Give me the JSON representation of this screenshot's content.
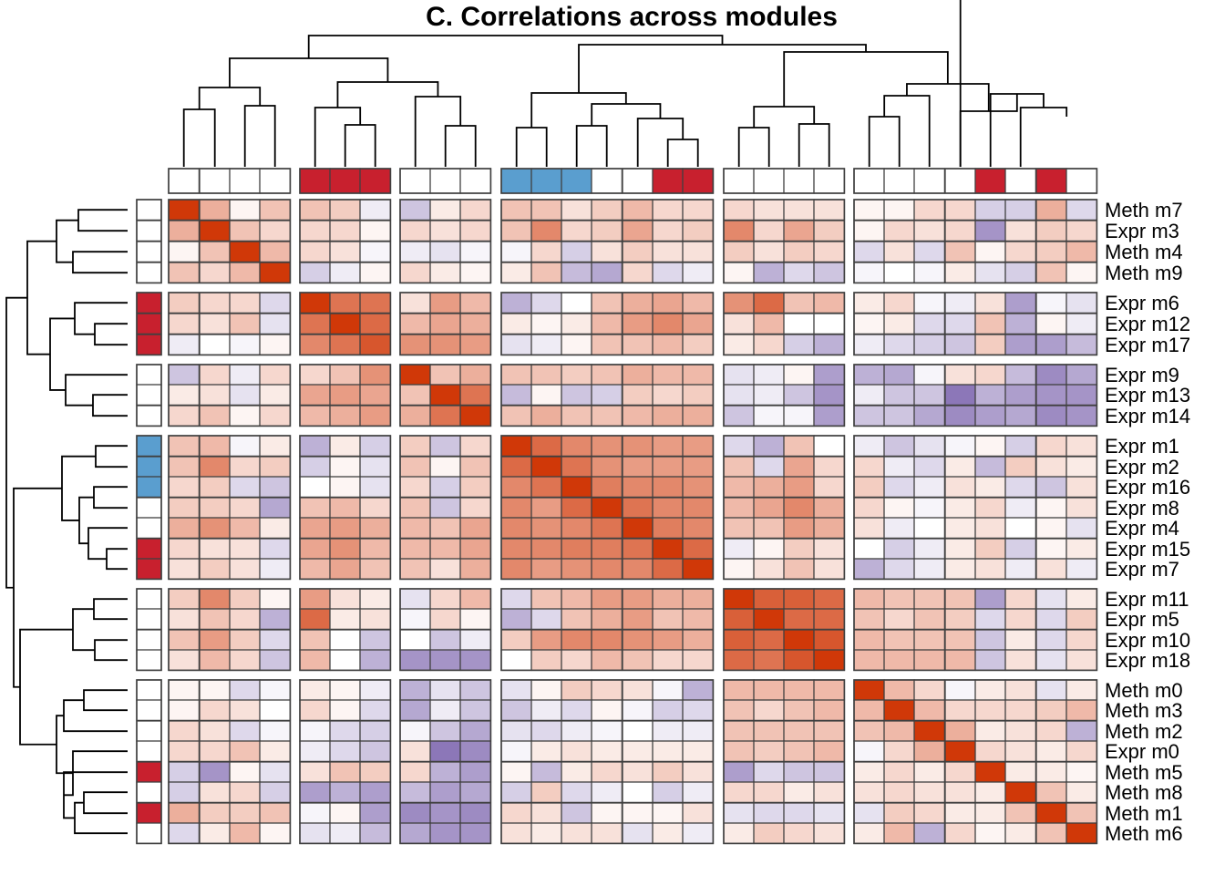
{
  "chart_data": {
    "type": "heatmap",
    "title": "C. Correlations across modules",
    "labels": [
      "Meth m7",
      "Expr m3",
      "Meth m4",
      "Meth m9",
      "Expr m6",
      "Expr m12",
      "Expr m17",
      "Expr m9",
      "Expr m13",
      "Expr m14",
      "Expr m1",
      "Expr m2",
      "Expr m16",
      "Expr m8",
      "Expr m4",
      "Expr m15",
      "Expr m7",
      "Expr m11",
      "Expr m5",
      "Expr m10",
      "Expr m18",
      "Meth m0",
      "Meth m3",
      "Meth m2",
      "Expr m0",
      "Meth m5",
      "Meth m8",
      "Meth m1",
      "Meth m6"
    ],
    "row_groups": [
      4,
      3,
      3,
      7,
      4,
      8
    ],
    "col_groups": [
      4,
      3,
      3,
      7,
      4,
      8
    ],
    "value_range": [
      -1,
      1
    ],
    "colors": {
      "positive": "#d03808",
      "negative": "#5b3d99",
      "zero": "#ffffff",
      "annot_red": "#c8202e",
      "annot_blue": "#5a9ecf",
      "annot_white": "#ffffff",
      "border": "#404040"
    },
    "annotation": [
      "w",
      "w",
      "w",
      "w",
      "r",
      "r",
      "r",
      "w",
      "w",
      "w",
      "b",
      "b",
      "b",
      "w",
      "w",
      "r",
      "r",
      "w",
      "w",
      "w",
      "w",
      "w",
      "w",
      "w",
      "w",
      "r",
      "w",
      "r",
      "w"
    ],
    "values": [
      [
        1,
        0.4,
        0.05,
        0.3,
        0.3,
        0.25,
        -0.1,
        -0.3,
        0.1,
        0.2,
        0.3,
        0.3,
        0.15,
        0.25,
        0.35,
        0.2,
        0.2,
        0.2,
        0.15,
        0.15,
        0.15,
        0.05,
        0.05,
        0.2,
        0.2,
        -0.25,
        -0.25,
        0.4,
        -0.2
      ],
      [
        0.4,
        1,
        0.3,
        0.2,
        0.2,
        0.2,
        0.05,
        0.2,
        0.15,
        0.2,
        0.3,
        0.6,
        0.2,
        0.25,
        0.45,
        0.2,
        0.25,
        0.6,
        0.2,
        0.45,
        0.25,
        0.05,
        0.2,
        0.15,
        0.2,
        -0.55,
        0.15,
        0.25,
        0.2
      ],
      [
        0.05,
        0.3,
        1,
        0.35,
        0.2,
        0.15,
        -0.05,
        -0.1,
        -0.15,
        -0.05,
        -0.05,
        0.2,
        -0.25,
        0.15,
        0.25,
        0.15,
        0.15,
        0.25,
        0.15,
        0.25,
        0.2,
        -0.2,
        0.15,
        -0.2,
        0.3,
        0.05,
        0.2,
        0.25,
        0.35
      ],
      [
        0.3,
        0.2,
        0.35,
        1,
        -0.25,
        -0.1,
        0.05,
        0.2,
        0.1,
        0.05,
        0.1,
        0.3,
        -0.35,
        -0.45,
        0.2,
        -0.2,
        -0.1,
        0.05,
        -0.4,
        -0.2,
        -0.3,
        -0.05,
        0,
        -0.05,
        0.1,
        -0.15,
        -0.25,
        0.3,
        0.05
      ],
      [
        0.25,
        0.2,
        0.2,
        -0.2,
        1,
        0.7,
        0.7,
        0.15,
        0.5,
        0.35,
        -0.4,
        -0.2,
        0,
        0.3,
        0.4,
        0.45,
        0.35,
        0.55,
        0.75,
        0.3,
        0.35,
        0.1,
        0.2,
        -0.05,
        -0.1,
        0.15,
        -0.5,
        -0.05,
        -0.15
      ],
      [
        0.2,
        0.15,
        0.3,
        -0.15,
        0.7,
        1,
        0.75,
        0.35,
        0.45,
        0.4,
        0.1,
        0.05,
        0.1,
        0.35,
        0.5,
        0.6,
        0.45,
        0.15,
        0.35,
        0,
        0,
        0.05,
        0.1,
        -0.2,
        -0.2,
        0.3,
        -0.4,
        0.05,
        -0.1
      ],
      [
        -0.1,
        0,
        -0.05,
        0.05,
        0.6,
        0.7,
        0.85,
        0.55,
        0.55,
        0.5,
        -0.15,
        -0.1,
        0.05,
        0.3,
        0.3,
        0.35,
        0.25,
        0.1,
        0.2,
        -0.25,
        -0.4,
        -0.1,
        -0.2,
        -0.25,
        -0.3,
        0.25,
        -0.5,
        -0.5,
        -0.35
      ],
      [
        -0.3,
        0.2,
        -0.1,
        0.2,
        0.2,
        0.3,
        0.55,
        1,
        0.3,
        0.4,
        0.3,
        0.3,
        0.25,
        0.3,
        0.4,
        0.35,
        0.35,
        -0.15,
        -0.1,
        0.05,
        -0.5,
        -0.4,
        -0.45,
        -0.05,
        0.15,
        0.2,
        -0.35,
        -0.6,
        -0.45
      ],
      [
        0.1,
        0.15,
        -0.15,
        0.1,
        0.45,
        0.5,
        0.45,
        0.3,
        1,
        0.7,
        -0.35,
        0.05,
        -0.3,
        -0.25,
        0.25,
        0.2,
        0.25,
        -0.15,
        -0.1,
        -0.3,
        -0.55,
        -0.1,
        -0.3,
        -0.3,
        -0.7,
        -0.4,
        -0.5,
        -0.55,
        -0.55
      ],
      [
        0.2,
        0.3,
        0.05,
        0.2,
        0.35,
        0.4,
        0.5,
        0.4,
        0.7,
        1,
        0.3,
        0.4,
        0.3,
        0.3,
        0.35,
        0.4,
        0.4,
        -0.3,
        -0.05,
        -0.05,
        -0.5,
        -0.3,
        -0.3,
        -0.45,
        -0.6,
        -0.5,
        -0.45,
        -0.6,
        -0.55
      ],
      [
        0.3,
        0.35,
        -0.05,
        0.1,
        -0.4,
        0.1,
        -0.25,
        0.25,
        -0.3,
        0.2,
        1,
        0.75,
        0.6,
        0.55,
        0.55,
        0.5,
        0.5,
        -0.2,
        -0.4,
        0.3,
        0,
        -0.1,
        -0.3,
        -0.15,
        -0.05,
        0.05,
        -0.25,
        0.2,
        0.15
      ],
      [
        0.3,
        0.6,
        0.2,
        0.25,
        -0.25,
        0.05,
        -0.15,
        0.3,
        0.05,
        0.3,
        0.75,
        1,
        0.7,
        0.55,
        0.5,
        0.5,
        0.5,
        0.3,
        -0.2,
        0.45,
        0.2,
        0.2,
        -0.1,
        -0.2,
        0.1,
        -0.35,
        0.25,
        0.15,
        0.1
      ],
      [
        0.2,
        0.25,
        -0.2,
        -0.3,
        0,
        0.05,
        -0.15,
        0.2,
        -0.25,
        0.25,
        0.6,
        0.7,
        1,
        0.65,
        0.6,
        0.6,
        0.55,
        0.35,
        0.4,
        0.5,
        0.2,
        0.25,
        -0.2,
        -0.1,
        0.15,
        0.1,
        -0.2,
        -0.3,
        0.15
      ],
      [
        0.25,
        0.25,
        0.2,
        -0.45,
        0.3,
        0.35,
        0.2,
        0.3,
        -0.3,
        0.2,
        0.6,
        0.5,
        0.75,
        1,
        0.7,
        0.6,
        0.6,
        0.35,
        0.45,
        0.6,
        0.4,
        0.2,
        0.05,
        -0.05,
        0.1,
        0.2,
        -0.1,
        0.05,
        0.15
      ],
      [
        0.4,
        0.55,
        0.35,
        0.1,
        0.45,
        0.5,
        0.4,
        0.35,
        0.3,
        0.45,
        0.6,
        0.55,
        0.6,
        0.7,
        1,
        0.65,
        0.6,
        0.3,
        0.3,
        0.5,
        0.4,
        0.15,
        -0.1,
        0,
        0.1,
        0.15,
        0,
        0.05,
        -0.15
      ],
      [
        0.2,
        0.15,
        0.15,
        -0.2,
        0.45,
        0.55,
        0.35,
        0.35,
        0.35,
        0.45,
        0.6,
        0.6,
        0.65,
        0.65,
        0.7,
        1,
        0.75,
        -0.1,
        0.05,
        0.25,
        0.15,
        0,
        -0.25,
        -0.1,
        0.1,
        0.25,
        -0.25,
        0.05,
        0.1
      ],
      [
        0.15,
        0.25,
        0.15,
        -0.1,
        0.35,
        0.45,
        0.3,
        0.3,
        0.15,
        0.4,
        0.6,
        0.5,
        0.55,
        0.6,
        0.6,
        0.75,
        1,
        0.05,
        0.15,
        0.3,
        0.15,
        -0.4,
        -0.2,
        -0.1,
        0.1,
        0.15,
        -0.1,
        0.15,
        -0.1
      ],
      [
        0.25,
        0.6,
        0.25,
        0.05,
        0.5,
        0.15,
        0.1,
        -0.15,
        0.2,
        0.35,
        -0.2,
        0.3,
        0.35,
        0.5,
        0.5,
        0.4,
        0.4,
        1,
        0.8,
        0.8,
        0.75,
        0.35,
        0.3,
        0.3,
        0.3,
        -0.5,
        0.2,
        -0.15,
        0.1
      ],
      [
        0.15,
        0.3,
        0.2,
        -0.4,
        0.75,
        0.1,
        0.15,
        -0.05,
        0.2,
        0.05,
        -0.4,
        -0.2,
        0.3,
        0.4,
        0.5,
        0.3,
        0.35,
        0.8,
        1,
        0.75,
        0.75,
        0.3,
        0.2,
        0.3,
        0.25,
        -0.2,
        0.2,
        -0.2,
        0.25
      ],
      [
        0.3,
        0.5,
        0.25,
        -0.2,
        0.3,
        0,
        -0.3,
        0,
        -0.3,
        -0.1,
        0.25,
        0.5,
        0.6,
        0.6,
        0.55,
        0.5,
        0.4,
        0.8,
        0.75,
        1,
        0.85,
        0.35,
        0.3,
        0.3,
        0.3,
        -0.3,
        0.1,
        -0.2,
        0.2
      ],
      [
        0.15,
        0.35,
        0.2,
        -0.3,
        0.35,
        0,
        -0.4,
        -0.55,
        -0.55,
        -0.55,
        0,
        0.25,
        0.2,
        0.35,
        0.3,
        0.2,
        0.2,
        0.75,
        0.7,
        0.85,
        1,
        0.35,
        0.35,
        0.35,
        0.35,
        -0.3,
        0.15,
        -0.15,
        0.15
      ],
      [
        0.05,
        0.05,
        -0.2,
        -0.05,
        0.1,
        0.05,
        -0.1,
        -0.4,
        -0.15,
        -0.3,
        -0.15,
        0.05,
        0.25,
        0.2,
        0.15,
        -0.05,
        -0.4,
        0.35,
        0.35,
        0.35,
        0.35,
        1,
        0.35,
        0.2,
        -0.05,
        0.1,
        0.15,
        -0.15,
        0.1
      ],
      [
        0.05,
        0.2,
        0.15,
        0,
        0.2,
        0.05,
        -0.2,
        -0.45,
        -0.1,
        -0.3,
        -0.3,
        -0.1,
        -0.2,
        0.05,
        -0.05,
        -0.25,
        -0.2,
        0.3,
        0.2,
        0.3,
        0.35,
        0.35,
        1,
        0.35,
        0.2,
        0.2,
        0.2,
        0.25,
        0.35
      ],
      [
        0.2,
        0.15,
        -0.2,
        -0.05,
        -0.05,
        -0.2,
        -0.25,
        -0.05,
        -0.3,
        -0.45,
        -0.15,
        -0.2,
        -0.1,
        -0.05,
        0,
        -0.1,
        -0.1,
        0.3,
        0.3,
        0.3,
        0.3,
        0.3,
        0.35,
        1,
        0.4,
        0.1,
        0.15,
        0.2,
        -0.4
      ],
      [
        0.2,
        0.2,
        0.3,
        0.1,
        -0.1,
        -0.2,
        -0.3,
        0.15,
        -0.7,
        -0.6,
        -0.05,
        0.1,
        0.15,
        0.1,
        0.1,
        0.1,
        0.1,
        0.3,
        0.25,
        0.3,
        0.35,
        -0.05,
        0.2,
        0.4,
        1,
        0.2,
        0.15,
        0.1,
        0.2
      ],
      [
        -0.25,
        -0.55,
        0.05,
        -0.15,
        0.15,
        0.3,
        0.25,
        0.2,
        -0.4,
        -0.5,
        0.05,
        -0.35,
        0.1,
        0.2,
        0.15,
        0.25,
        0.15,
        -0.5,
        -0.2,
        -0.3,
        -0.3,
        0.1,
        0.2,
        0.1,
        0.2,
        1,
        0.1,
        0.1,
        0.05
      ],
      [
        -0.25,
        0.15,
        0.2,
        -0.25,
        -0.5,
        -0.4,
        -0.5,
        -0.35,
        -0.5,
        -0.45,
        -0.25,
        0.25,
        -0.2,
        -0.1,
        0,
        -0.25,
        -0.1,
        0.2,
        0.2,
        0.1,
        0.15,
        0.15,
        0.2,
        0.15,
        0.15,
        0.1,
        1,
        0.3,
        0.1
      ],
      [
        0.4,
        0.25,
        0.25,
        0.3,
        -0.05,
        0.05,
        -0.5,
        -0.6,
        -0.55,
        -0.6,
        0.2,
        0.15,
        -0.3,
        0.05,
        0.05,
        0.05,
        0.15,
        -0.15,
        -0.2,
        -0.2,
        -0.15,
        -0.15,
        0.25,
        0.2,
        0.1,
        0.1,
        0.3,
        1,
        0.3
      ],
      [
        -0.2,
        0.1,
        0.35,
        0.05,
        -0.15,
        -0.1,
        -0.35,
        -0.45,
        -0.55,
        -0.55,
        0.15,
        0.1,
        0.15,
        0.15,
        -0.15,
        0.1,
        -0.1,
        0.1,
        0.25,
        0.2,
        0.15,
        0.1,
        0.35,
        -0.4,
        0.2,
        0.05,
        0.1,
        0.3,
        1
      ]
    ]
  }
}
